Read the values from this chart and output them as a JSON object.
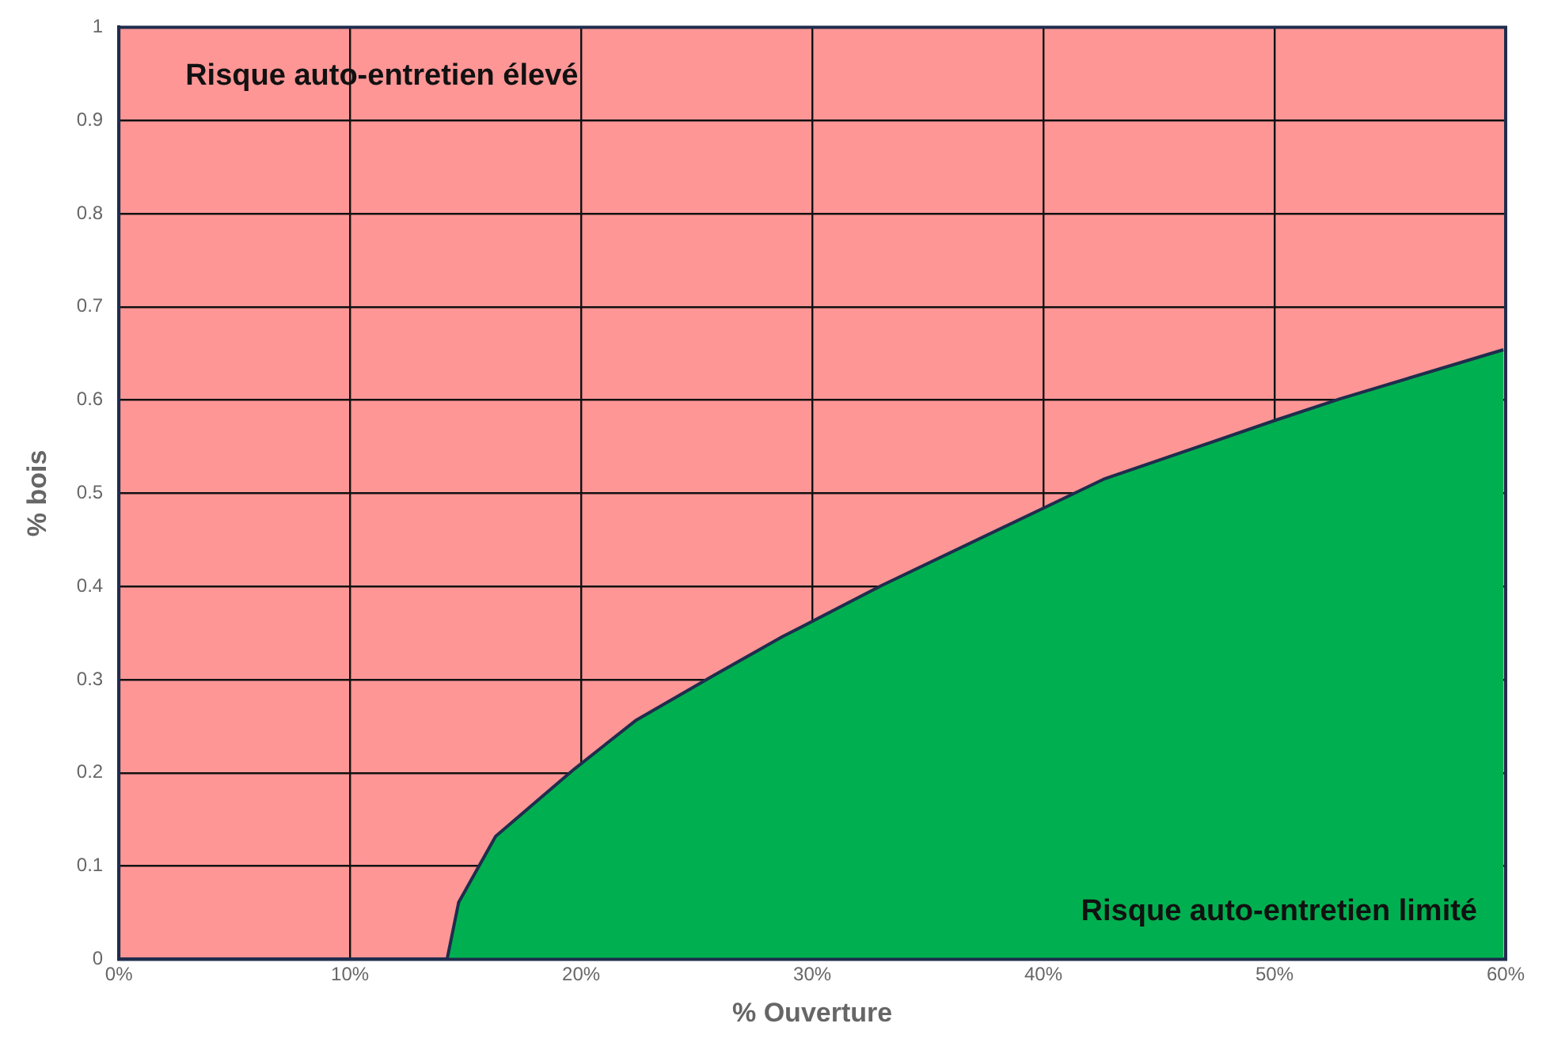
{
  "chart_data": {
    "type": "area",
    "xlabel": "% Ouverture",
    "ylabel": "% bois",
    "x": [
      14.2,
      14.7,
      16.3,
      19.7,
      22.35,
      25.7,
      28.7,
      33.0,
      40.0,
      42.6,
      50.0,
      52.8,
      59.9
    ],
    "series": [
      {
        "color": "#00b050",
        "values": [
          0,
          0.061,
          0.132,
          0.204,
          0.256,
          0.304,
          0.346,
          0.401,
          0.484,
          0.515,
          0.578,
          0.601,
          0.654
        ]
      }
    ],
    "xlim": [
      0,
      60
    ],
    "xticks": [
      {
        "value": 0,
        "label": "0%"
      },
      {
        "value": 10,
        "label": "10%"
      },
      {
        "value": 20,
        "label": "20%"
      },
      {
        "value": 30,
        "label": "30%"
      },
      {
        "value": 40,
        "label": "40%"
      },
      {
        "value": 50,
        "label": "50%"
      },
      {
        "value": 60,
        "label": "60%"
      }
    ],
    "ylim": [
      0,
      1
    ],
    "yticks": [
      0,
      0.1,
      0.2,
      0.3,
      0.4,
      0.5,
      0.6,
      0.7,
      0.8,
      0.9,
      1
    ],
    "bands": [
      {
        "axis": "y",
        "from": 0,
        "to": 1,
        "color": "#ff9696"
      }
    ],
    "annotations": [
      "Risque auto-entretien élevé",
      "Risque auto-entretien limité"
    ],
    "grid": true
  }
}
